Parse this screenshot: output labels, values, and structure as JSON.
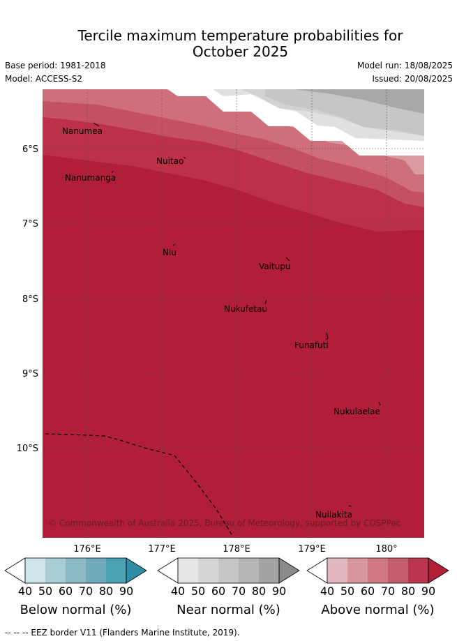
{
  "header": {
    "title_line1": "Tercile maximum temperature probabilities for",
    "title_line2": "October 2025",
    "base_period": "Base period: 1981-2018",
    "model": "Model: ACCESS-S2",
    "model_run": "Model run: 18/08/2025",
    "issued": "Issued: 20/08/2025"
  },
  "map": {
    "lon_labels": [
      "176°E",
      "177°E",
      "178°E",
      "179°E",
      "180°"
    ],
    "lat_labels": [
      "6°S",
      "7°S",
      "8°S",
      "9°S",
      "10°S"
    ],
    "places": [
      {
        "name": "Nanumea"
      },
      {
        "name": "Nuitao"
      },
      {
        "name": "Nanumanga"
      },
      {
        "name": "Niu"
      },
      {
        "name": "Vaitupu"
      },
      {
        "name": "Nukufetau"
      },
      {
        "name": "Funafuti"
      },
      {
        "name": "Nukulaelae"
      },
      {
        "name": "Nuilakita"
      }
    ],
    "copyright": "© Commonwealth of Australia 2025, Bureau of Meteorology, supported by COSPPac",
    "colors": {
      "above_90": "#b01e38",
      "above_80": "#bc3148",
      "above_70": "#c55060",
      "above_60": "#cf6f7b",
      "above_50": "#da9aa1",
      "near_40": "#e0e0e0",
      "near_50": "#d2d2d2",
      "near_60": "#c6c6c6",
      "near_80": "#a8a8a8"
    }
  },
  "legends": [
    {
      "title": "Below normal (%)",
      "ticks": [
        "40",
        "50",
        "60",
        "70",
        "80",
        "90"
      ],
      "colors": [
        "#cde5eb",
        "#a9cdd4",
        "#8bbac5",
        "#6eaabb",
        "#4aa2b2",
        "#2e8ea6"
      ]
    },
    {
      "title": "Near normal (%)",
      "ticks": [
        "40",
        "50",
        "60",
        "70",
        "80",
        "90"
      ],
      "colors": [
        "#e6e6e6",
        "#d6d6d6",
        "#c6c6c6",
        "#b5b5b5",
        "#a3a3a3",
        "#8a8a8a"
      ]
    },
    {
      "title": "Above normal (%)",
      "ticks": [
        "40",
        "50",
        "60",
        "70",
        "80",
        "90"
      ],
      "colors": [
        "#e1b8bf",
        "#d8979f",
        "#cf7a83",
        "#c55e6c",
        "#ba3550",
        "#b01e38"
      ]
    }
  ],
  "footer": "--  --  -- EEZ border V11 (Flanders Marine Institute, 2019)."
}
